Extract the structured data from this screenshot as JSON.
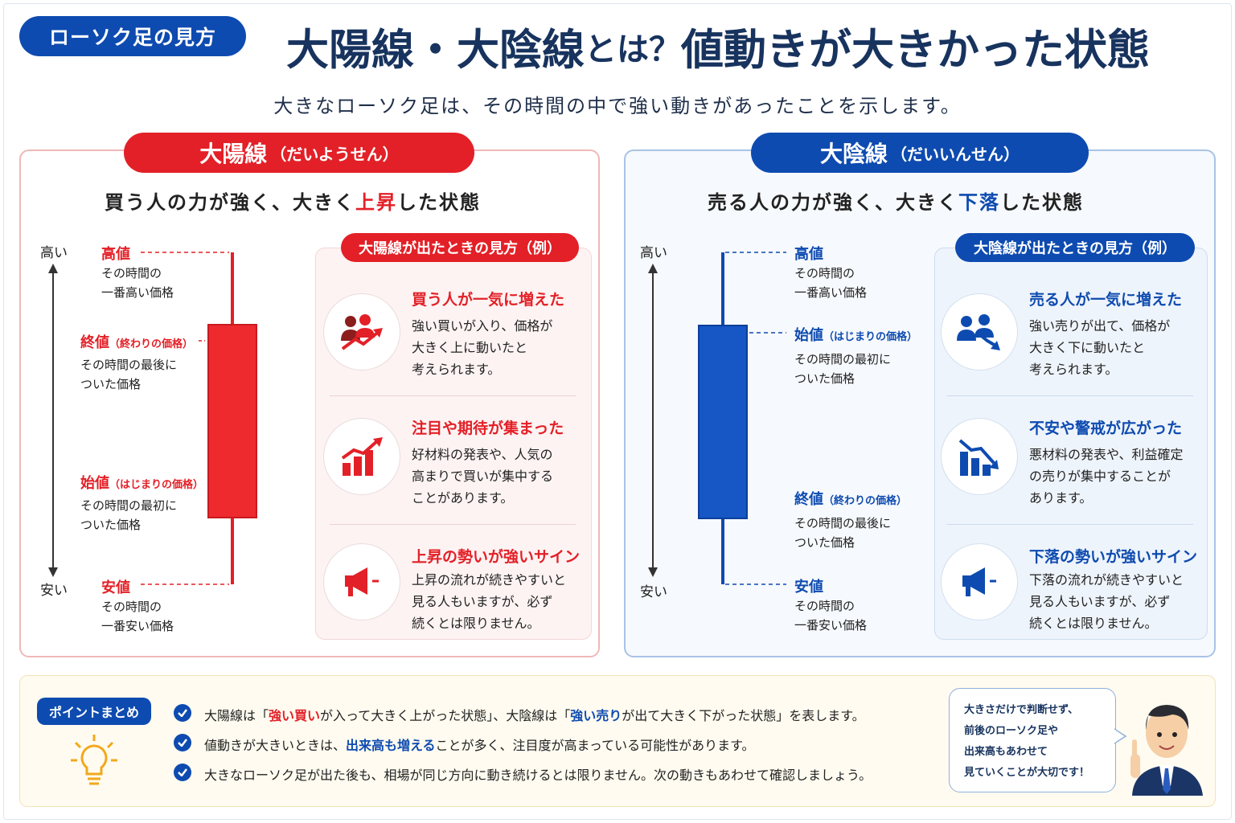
{
  "header": {
    "tag": "ローソク足の見方",
    "title_a": "大陽線・大陰線",
    "title_b": "とは？",
    "title_c": "値動きが大きかった状態",
    "subtitle": "大きなローソク足は、その時間の中で強い動きがあったことを示します。"
  },
  "colors": {
    "red": "#e32027",
    "blue": "#0e4bb0",
    "navy": "#17335e"
  },
  "yang": {
    "title": "大陽線",
    "reading": "（だいようせん）",
    "desc_pre": "買う人の力が強く、大きく",
    "desc_acc": "上昇",
    "desc_post": "した状態",
    "axis_high": "高い",
    "axis_low": "安い",
    "high": {
      "head": "高値",
      "line1": "その時間の",
      "line2": "一番高い価格"
    },
    "close": {
      "head": "終値",
      "note": "（終わりの価格）",
      "line1": "その時間の最後に",
      "line2": "ついた価格"
    },
    "open": {
      "head": "始値",
      "note": "（はじまりの価格）",
      "line1": "その時間の最初に",
      "line2": "ついた価格"
    },
    "low": {
      "head": "安値",
      "line1": "その時間の",
      "line2": "一番安い価格"
    },
    "card_title": "大陽線が出たときの見方（例）",
    "items": [
      {
        "icon": "people-up-icon",
        "head": "買う人が一気に増えた",
        "lines": [
          "強い買いが入り、価格が",
          "大きく上に動いたと",
          "考えられます。"
        ]
      },
      {
        "icon": "bar-chart-up-icon",
        "head": "注目や期待が集まった",
        "lines": [
          "好材料の発表や、人気の",
          "高まりで買いが集中する",
          "ことがあります。"
        ]
      },
      {
        "icon": "megaphone-icon",
        "head": "上昇の勢いが強いサイン",
        "lines": [
          "上昇の流れが続きやすいと",
          "見る人もいますが、必ず",
          "続くとは限りません。"
        ]
      }
    ]
  },
  "yin": {
    "title": "大陰線",
    "reading": "（だいいんせん）",
    "desc_pre": "売る人の力が強く、大きく",
    "desc_acc": "下落",
    "desc_post": "した状態",
    "axis_high": "高い",
    "axis_low": "安い",
    "high": {
      "head": "高値",
      "line1": "その時間の",
      "line2": "一番高い価格"
    },
    "open": {
      "head": "始値",
      "note": "（はじまりの価格）",
      "line1": "その時間の最初に",
      "line2": "ついた価格"
    },
    "close": {
      "head": "終値",
      "note": "（終わりの価格）",
      "line1": "その時間の最後に",
      "line2": "ついた価格"
    },
    "low": {
      "head": "安値",
      "line1": "その時間の",
      "line2": "一番安い価格"
    },
    "card_title": "大陰線が出たときの見方（例）",
    "items": [
      {
        "icon": "people-down-icon",
        "head": "売る人が一気に増えた",
        "lines": [
          "強い売りが出て、価格が",
          "大きく下に動いたと",
          "考えられます。"
        ]
      },
      {
        "icon": "bar-chart-down-icon",
        "head": "不安や警戒が広がった",
        "lines": [
          "悪材料の発表や、利益確定",
          "の売りが集中することが",
          "あります。"
        ]
      },
      {
        "icon": "megaphone-icon",
        "head": "下落の勢いが強いサイン",
        "lines": [
          "下落の流れが続きやすいと",
          "見る人もいますが、必ず",
          "続くとは限りません。"
        ]
      }
    ]
  },
  "points": {
    "tag": "ポイントまとめ",
    "p1": {
      "a": "大陽線は「",
      "b": "強い買い",
      "c": "が入って大きく上がった状態」、大陰線は「",
      "d": "強い売り",
      "e": "が出て大きく下がった状態」を表します。"
    },
    "p2": {
      "a": "値動きが大きいときは、",
      "b": "出来高も増える",
      "c": "ことが多く、注目度が高まっている可能性があります。"
    },
    "p3": "大きなローソク足が出た後も、相場が同じ方向に動き続けるとは限りません。次の動きもあわせて確認しましょう。",
    "bubble": [
      "大きさだけで判断せず、",
      "前後のローソク足や",
      "出来高もあわせて",
      "見ていくことが大切です！"
    ]
  }
}
